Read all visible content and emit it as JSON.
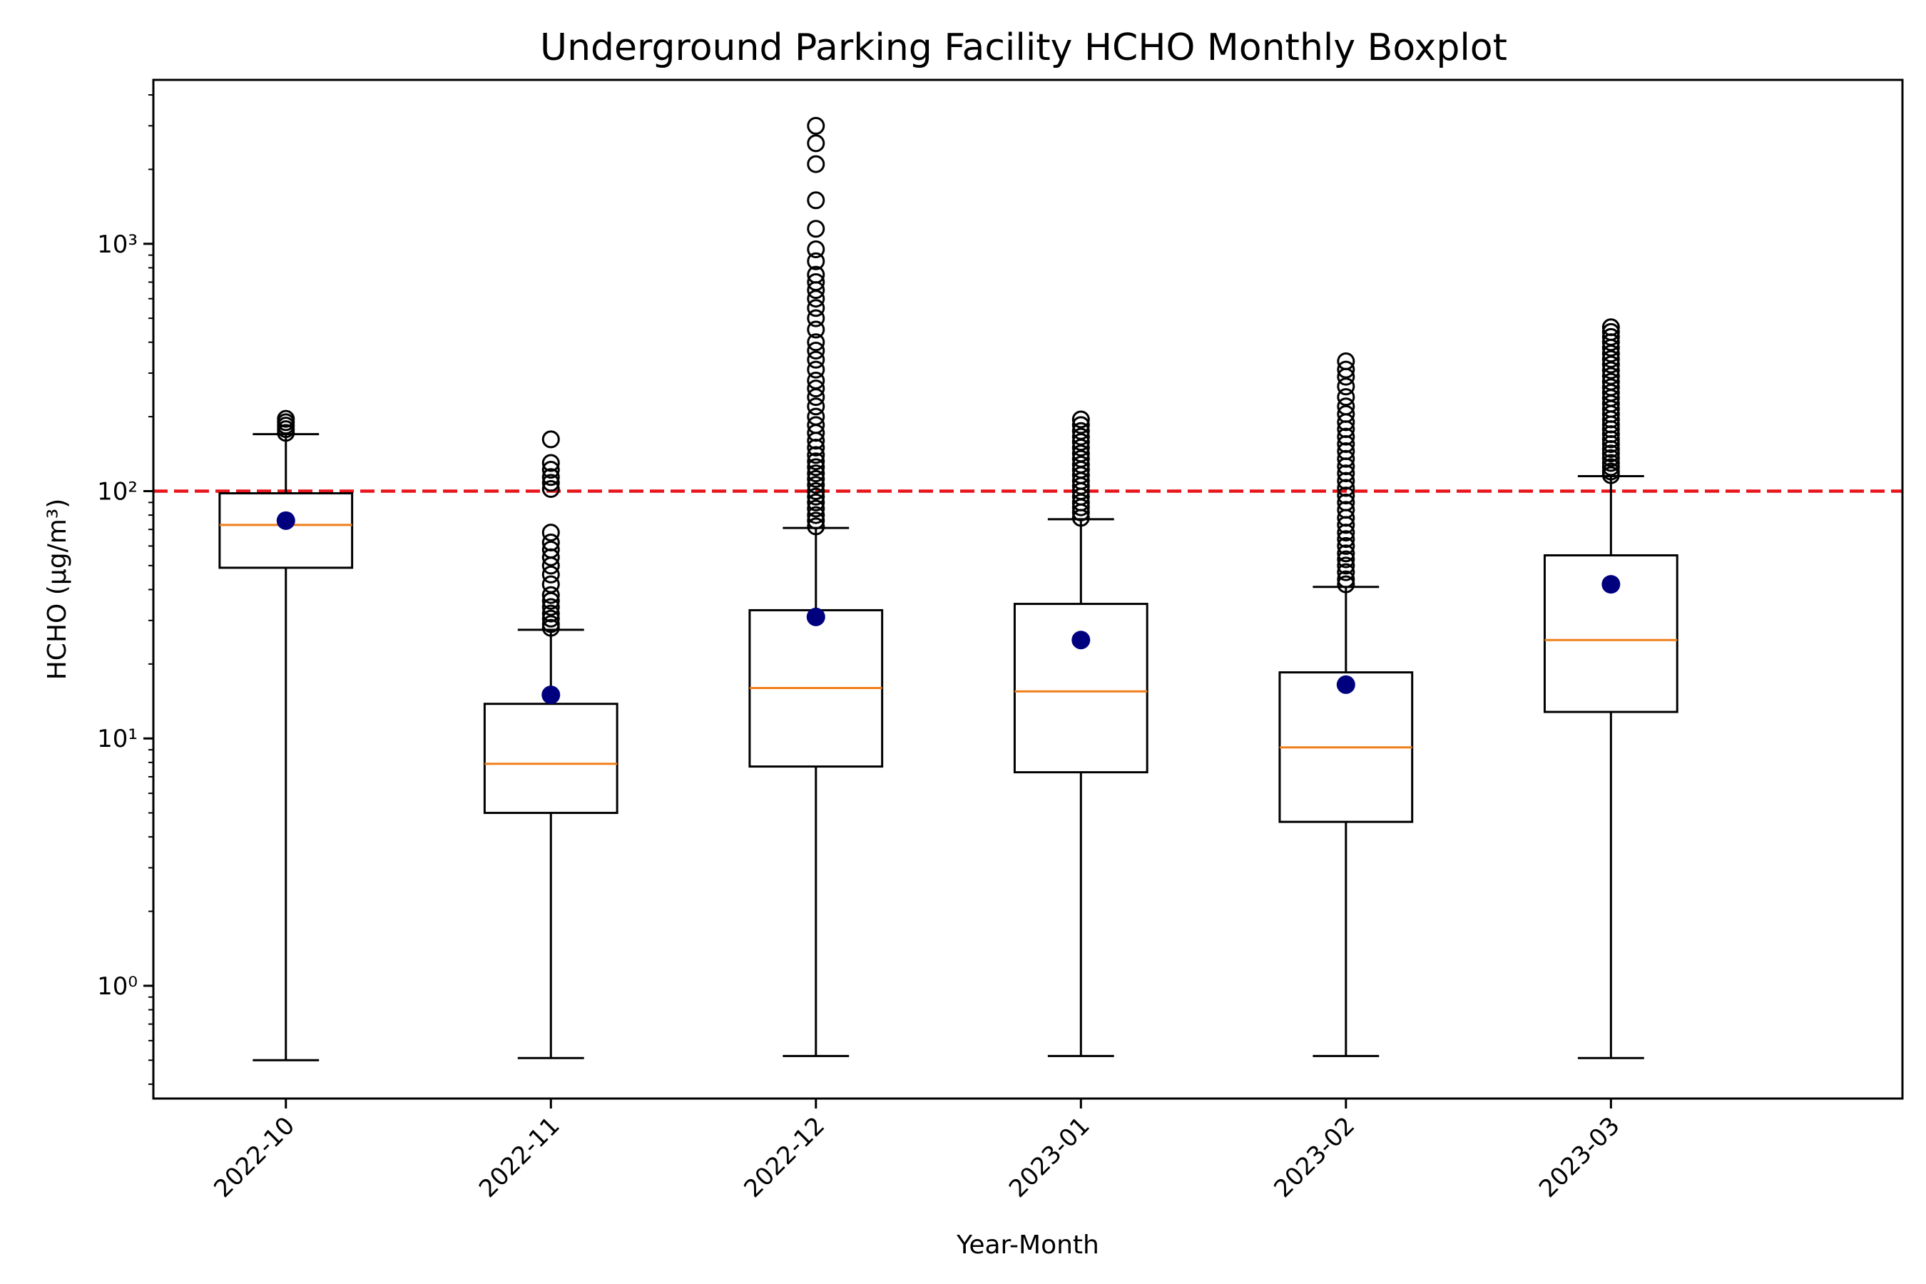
{
  "chart_data": {
    "type": "boxplot",
    "title": "Underground Parking Facility HCHO Monthly Boxplot",
    "xlabel": "Year-Month",
    "ylabel": "HCHO (μg/m³)",
    "yscale": "log",
    "ylim": [
      0.35,
      4600
    ],
    "yticks": [
      {
        "value": 1,
        "label": "10⁰"
      },
      {
        "value": 10,
        "label": "10¹"
      },
      {
        "value": 100,
        "label": "10²"
      },
      {
        "value": 1000,
        "label": "10³"
      }
    ],
    "reference_line": {
      "value": 100,
      "color": "#e8141b",
      "style": "dashed"
    },
    "colors": {
      "box": "#000000",
      "median": "#f07f1a",
      "mean": "#00007f",
      "outlier": "#000000"
    },
    "categories": [
      "2022-10",
      "2022-11",
      "2022-12",
      "2023-01",
      "2023-02",
      "2023-03"
    ],
    "boxes": [
      {
        "category": "2022-10",
        "whisker_low": 0.5,
        "q1": 49,
        "median": 73,
        "q3": 98,
        "whisker_high": 170,
        "mean": 76,
        "outliers": [
          172,
          178,
          184,
          190,
          196
        ]
      },
      {
        "category": "2022-11",
        "whisker_low": 0.51,
        "q1": 5.0,
        "median": 7.9,
        "q3": 13.8,
        "whisker_high": 27.5,
        "mean": 15,
        "outliers": [
          28,
          29,
          30.5,
          32,
          34,
          36,
          38,
          42,
          46,
          50,
          54,
          58,
          62,
          68,
          102,
          108,
          114,
          122,
          130,
          162
        ]
      },
      {
        "category": "2022-12",
        "whisker_low": 0.52,
        "q1": 7.7,
        "median": 16,
        "q3": 33,
        "whisker_high": 71,
        "mean": 31,
        "outliers": [
          72,
          76,
          80,
          85,
          90,
          95,
          100,
          106,
          112,
          118,
          125,
          132,
          140,
          150,
          160,
          172,
          185,
          200,
          220,
          240,
          260,
          280,
          310,
          340,
          370,
          400,
          450,
          500,
          550,
          600,
          650,
          700,
          750,
          850,
          950,
          1150,
          1500,
          2100,
          2550,
          3000
        ]
      },
      {
        "category": "2023-01",
        "whisker_low": 0.52,
        "q1": 7.3,
        "median": 15.5,
        "q3": 35,
        "whisker_high": 77,
        "mean": 25,
        "outliers": [
          78,
          82,
          86,
          90,
          95,
          100,
          105,
          110,
          116,
          122,
          128,
          135,
          142,
          150,
          158,
          166,
          175,
          185,
          195
        ]
      },
      {
        "category": "2023-02",
        "whisker_low": 0.52,
        "q1": 4.6,
        "median": 9.2,
        "q3": 18.5,
        "whisker_high": 41,
        "mean": 16.5,
        "outliers": [
          42,
          44,
          47,
          50,
          53,
          56,
          60,
          64,
          68,
          73,
          78,
          84,
          90,
          96,
          103,
          110,
          118,
          126,
          135,
          145,
          155,
          166,
          178,
          190,
          205,
          220,
          240,
          265,
          290,
          310,
          335
        ]
      },
      {
        "category": "2023-03",
        "whisker_low": 0.51,
        "q1": 12.8,
        "median": 25,
        "q3": 55,
        "whisker_high": 115,
        "mean": 42,
        "outliers": [
          116,
          120,
          125,
          130,
          136,
          142,
          148,
          155,
          162,
          170,
          178,
          186,
          195,
          205,
          215,
          226,
          238,
          250,
          263,
          277,
          292,
          308,
          325,
          342,
          360,
          380,
          400,
          420,
          440,
          460
        ]
      }
    ]
  }
}
